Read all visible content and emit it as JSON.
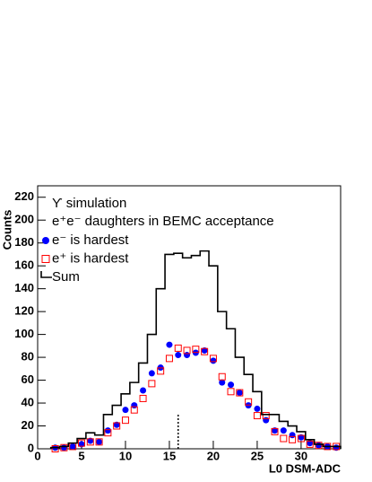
{
  "chart_data": {
    "type": "histogram",
    "annotations": [
      "ϒ simulation",
      "e⁺e⁻ daughters in BEMC acceptance"
    ],
    "x_label": "L0 DSM-ADC",
    "y_label": "Counts",
    "bins": [
      1.5,
      2.5,
      3.5,
      4.5,
      5.5,
      6.5,
      7.5,
      8.5,
      9.5,
      10.5,
      11.5,
      12.5,
      13.5,
      14.5,
      15.5,
      16.5,
      17.5,
      18.5,
      19.5,
      20.5,
      21.5,
      22.5,
      23.5,
      24.5,
      25.5,
      26.5,
      27.5,
      28.5,
      29.5,
      30.5,
      31.5,
      32.5,
      33.5,
      34.5
    ],
    "series": [
      {
        "name": "e⁻ is hardest",
        "color": "#0000ff",
        "style": "filled-circle",
        "values": [
          1,
          1,
          2,
          4,
          7,
          6,
          16,
          21,
          34,
          38,
          51,
          66,
          71,
          91,
          82,
          82,
          84,
          86,
          77,
          58,
          56,
          49,
          38,
          35,
          25,
          16,
          16,
          12,
          10,
          5,
          3,
          2,
          1
        ]
      },
      {
        "name": "e⁺ is hardest",
        "color": "#ff0000",
        "style": "open-square",
        "values": [
          0,
          1,
          2,
          5,
          6,
          6,
          14,
          20,
          25,
          34,
          44,
          57,
          68,
          79,
          88,
          86,
          87,
          85,
          79,
          63,
          50,
          49,
          41,
          29,
          29,
          15,
          9,
          8,
          9,
          4,
          3,
          2,
          2
        ]
      },
      {
        "name": "Sum",
        "color": "#000000",
        "style": "step",
        "values": [
          1,
          2,
          5,
          9,
          14,
          12,
          30,
          38,
          48,
          58,
          75,
          100,
          140,
          170,
          171,
          167,
          169,
          173,
          160,
          120,
          105,
          80,
          65,
          50,
          30,
          30,
          24,
          20,
          15,
          8,
          4,
          2,
          2
        ]
      }
    ],
    "vline": {
      "x": 16,
      "y": [
        0,
        30
      ]
    },
    "xlim": [
      0,
      34.5
    ],
    "ylim": [
      0,
      230
    ],
    "xticks": [
      0,
      5,
      10,
      15,
      20,
      25,
      30
    ],
    "yticks": [
      0,
      20,
      40,
      60,
      80,
      100,
      120,
      140,
      160,
      180,
      200,
      220
    ]
  }
}
